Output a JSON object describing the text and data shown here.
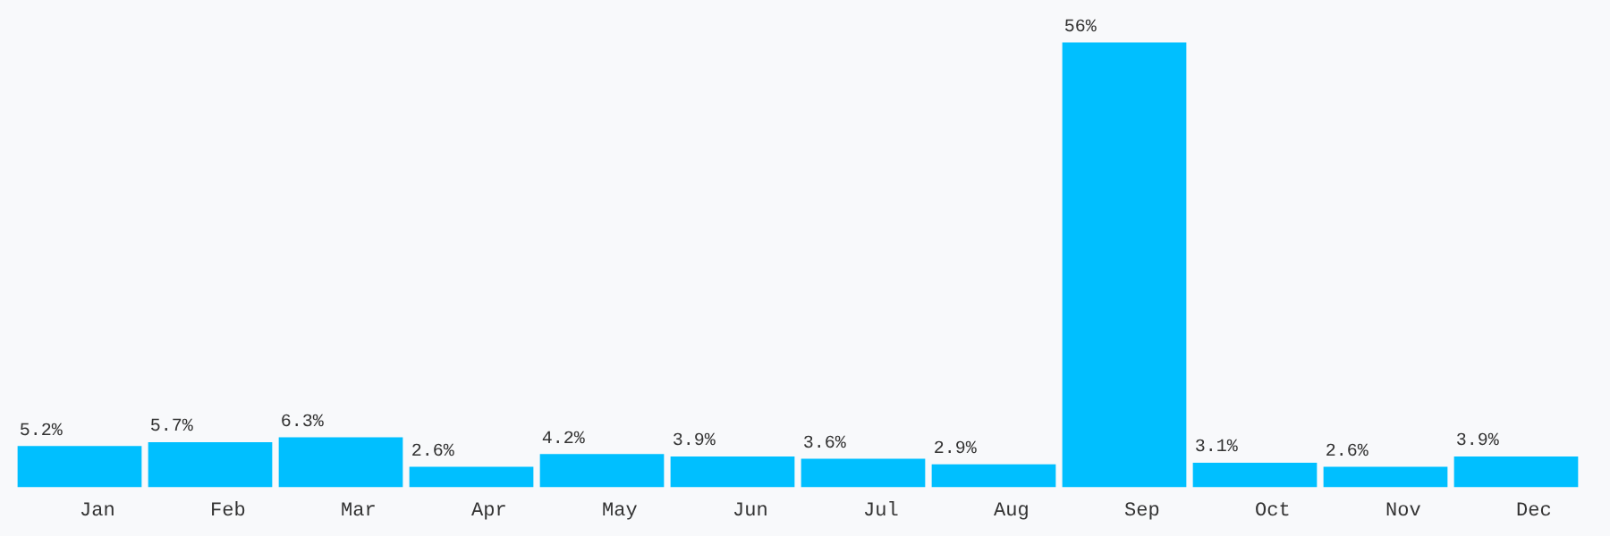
{
  "chart_data": {
    "type": "bar",
    "categories": [
      "Jan",
      "Feb",
      "Mar",
      "Apr",
      "May",
      "Jun",
      "Jul",
      "Aug",
      "Sep",
      "Oct",
      "Nov",
      "Dec"
    ],
    "values": [
      5.2,
      5.7,
      6.3,
      2.6,
      4.2,
      3.9,
      3.6,
      2.9,
      56,
      3.1,
      2.6,
      3.9
    ],
    "value_labels": [
      "5.2%",
      "5.7%",
      "6.3%",
      "2.6%",
      "4.2%",
      "3.9%",
      "3.6%",
      "2.9%",
      "56%",
      "3.1%",
      "2.6%",
      "3.9%"
    ],
    "color": "#00bfff"
  }
}
